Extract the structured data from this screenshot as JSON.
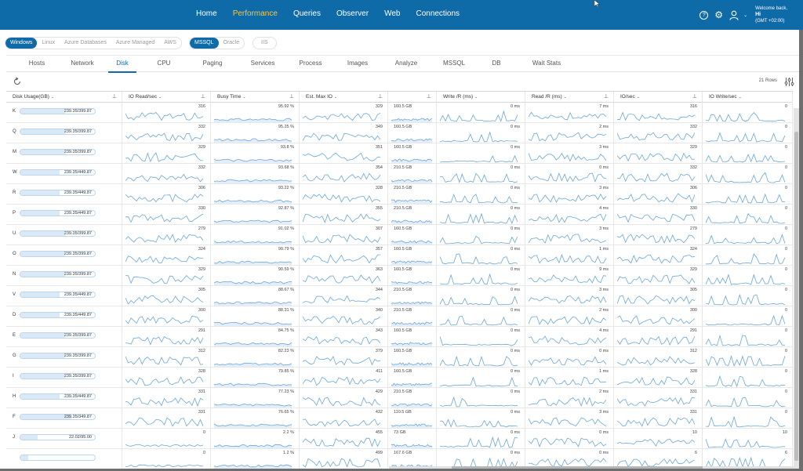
{
  "topnav": [
    "Home",
    "Performance",
    "Queries",
    "Observer",
    "Web",
    "Connections"
  ],
  "topnav_active": 1,
  "user": {
    "welcome": "Welcome back,",
    "name": "Hi",
    "tz": "(GMT +02:00)"
  },
  "platforms": [
    "Windows",
    "Linux",
    "Azure Databases",
    "Azure Managed",
    "AWS"
  ],
  "dbtypes": [
    "MSSQL",
    "Oracle"
  ],
  "iis": "IIS",
  "subtabs": [
    "Hosts",
    "Network",
    "Disk",
    "CPU",
    "Paging",
    "Services",
    "Process",
    "Images",
    "Analyze",
    "MSSQL",
    "DB",
    "Wait Stats"
  ],
  "subtab_active": 2,
  "rows_count": "21 Rows",
  "columns": [
    "Disk Usage(GB)",
    "IO Read/sec",
    "Busy Time",
    "Est. Max IO",
    "",
    "Write /R (ms)",
    "Read /R (ms)",
    "IO/sec",
    "IO Write/sec"
  ],
  "rows": [
    {
      "disk": "K",
      "usage": "239.35/399.87",
      "fill": 0.6,
      "ioread": "316",
      "busy": "95.92 %",
      "estmax": "329",
      "size": "160.5 GB",
      "write": "0 ms",
      "read": "7 ms",
      "iosec": "316",
      "iowrite": "0"
    },
    {
      "disk": "Q",
      "usage": "239.35/399.87",
      "fill": 0.6,
      "ioread": "332",
      "busy": "95.25 %",
      "estmax": "349",
      "size": "160.5 GB",
      "write": "0 ms",
      "read": "2 ms",
      "iosec": "332",
      "iowrite": "0"
    },
    {
      "disk": "M",
      "usage": "239.35/399.87",
      "fill": 0.6,
      "ioread": "329",
      "busy": "93.8 %",
      "estmax": "351",
      "size": "160.5 GB",
      "write": "0 ms",
      "read": "3 ms",
      "iosec": "329",
      "iowrite": "0"
    },
    {
      "disk": "W",
      "usage": "239.35/449.87",
      "fill": 0.53,
      "ioread": "332",
      "busy": "93.68 %",
      "estmax": "354",
      "size": "210.5 GB",
      "write": "0 ms",
      "read": "0 ms",
      "iosec": "332",
      "iowrite": "0"
    },
    {
      "disk": "R",
      "usage": "239.35/449.87",
      "fill": 0.53,
      "ioread": "306",
      "busy": "93.22 %",
      "estmax": "328",
      "size": "210.5 GB",
      "write": "0 ms",
      "read": "3 ms",
      "iosec": "306",
      "iowrite": "0"
    },
    {
      "disk": "P",
      "usage": "239.35/449.87",
      "fill": 0.53,
      "ioread": "330",
      "busy": "92.87 %",
      "estmax": "355",
      "size": "210.5 GB",
      "write": "0 ms",
      "read": "4 ms",
      "iosec": "330",
      "iowrite": "0"
    },
    {
      "disk": "U",
      "usage": "239.35/399.87",
      "fill": 0.6,
      "ioread": "279",
      "busy": "91.02 %",
      "estmax": "307",
      "size": "160.5 GB",
      "write": "0 ms",
      "read": "3 ms",
      "iosec": "279",
      "iowrite": "0"
    },
    {
      "disk": "O",
      "usage": "239.35/399.87",
      "fill": 0.6,
      "ioread": "324",
      "busy": "90.79 %",
      "estmax": "357",
      "size": "160.5 GB",
      "write": "0 ms",
      "read": "1 ms",
      "iosec": "324",
      "iowrite": "0"
    },
    {
      "disk": "N",
      "usage": "239.35/399.87",
      "fill": 0.6,
      "ioread": "329",
      "busy": "90.59 %",
      "estmax": "363",
      "size": "160.5 GB",
      "write": "0 ms",
      "read": "9 ms",
      "iosec": "329",
      "iowrite": "0"
    },
    {
      "disk": "V",
      "usage": "239.35/449.87",
      "fill": 0.53,
      "ioread": "305",
      "busy": "88.67 %",
      "estmax": "344",
      "size": "210.5 GB",
      "write": "0 ms",
      "read": "3 ms",
      "iosec": "305",
      "iowrite": "0"
    },
    {
      "disk": "D",
      "usage": "239.35/449.87",
      "fill": 0.53,
      "ioread": "300",
      "busy": "88.31 %",
      "estmax": "340",
      "size": "210.5 GB",
      "write": "0 ms",
      "read": "2 ms",
      "iosec": "300",
      "iowrite": "0"
    },
    {
      "disk": "E",
      "usage": "239.35/399.87",
      "fill": 0.6,
      "ioread": "291",
      "busy": "84.75 %",
      "estmax": "343",
      "size": "160.5 GB",
      "write": "0 ms",
      "read": "4 ms",
      "iosec": "291",
      "iowrite": "0"
    },
    {
      "disk": "G",
      "usage": "239.35/399.87",
      "fill": 0.6,
      "ioread": "312",
      "busy": "82.23 %",
      "estmax": "379",
      "size": "160.5 GB",
      "write": "0 ms",
      "read": "0 ms",
      "iosec": "312",
      "iowrite": "0"
    },
    {
      "disk": "I",
      "usage": "239.35/399.87",
      "fill": 0.6,
      "ioread": "328",
      "busy": "79.85 %",
      "estmax": "411",
      "size": "160.5 GB",
      "write": "0 ms",
      "read": "1 ms",
      "iosec": "328",
      "iowrite": "0"
    },
    {
      "disk": "H",
      "usage": "239.35/449.87",
      "fill": 0.53,
      "ioread": "331",
      "busy": "77.23 %",
      "estmax": "429",
      "size": "210.5 GB",
      "write": "0 ms",
      "read": "2 ms",
      "iosec": "331",
      "iowrite": "0"
    },
    {
      "disk": "F",
      "usage": "239.35/349.87",
      "fill": 0.68,
      "ioread": "331",
      "busy": "76.65 %",
      "estmax": "432",
      "size": "110.5 GB",
      "write": "0 ms",
      "read": "3 ms",
      "iosec": "331",
      "iowrite": "0"
    },
    {
      "disk": "J",
      "usage": "22.02/95.00",
      "fill": 0.23,
      "ioread": "0",
      "busy": "2.2 %",
      "estmax": "455",
      "size": "73 GB",
      "write": "0 ms",
      "read": "0 ms",
      "iosec": "10",
      "iowrite": "10"
    },
    {
      "disk": "",
      "usage": "",
      "fill": 0.1,
      "ioread": "0",
      "busy": "1.2 %",
      "estmax": "499",
      "size": "167.6 GB",
      "write": "0 ms",
      "read": "0 ms",
      "iosec": "6",
      "iowrite": "6"
    }
  ],
  "colors": {
    "topbar": "#0f6aa8",
    "active_nav": "#f5c842",
    "spark": "#6aa6d8",
    "accent": "#0f6aa8"
  }
}
